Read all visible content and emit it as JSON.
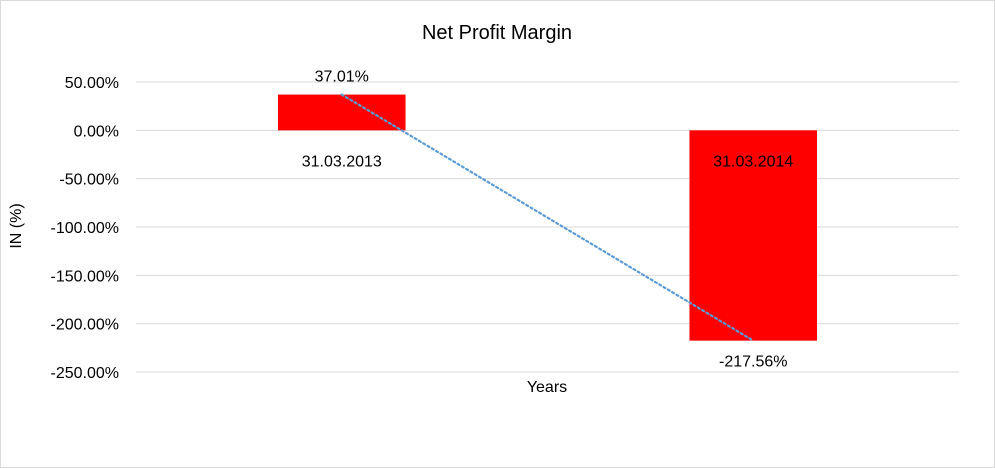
{
  "chart_data": {
    "type": "bar",
    "title": "Net Profit Margin",
    "xlabel": "Years",
    "ylabel": "IN (%)",
    "categories": [
      "31.03.2013",
      "31.03.2014"
    ],
    "series": [
      {
        "values": [
          37.01,
          -217.56
        ],
        "data_labels": [
          "37.01%",
          "-217.56%"
        ],
        "color": "#ff0000"
      }
    ],
    "trendline": {
      "type": "linear",
      "style": "dotted",
      "color": "#5b9bd5"
    },
    "ylim": [
      -250,
      50
    ],
    "yticks": [
      50,
      0,
      -50,
      -100,
      -150,
      -200,
      -250
    ],
    "ytick_labels": [
      "50.00%",
      "0.00%",
      "-50.00%",
      "-100.00%",
      "-150.00%",
      "-200.00%",
      "-250.00%"
    ],
    "grid": true,
    "legend": "none"
  }
}
